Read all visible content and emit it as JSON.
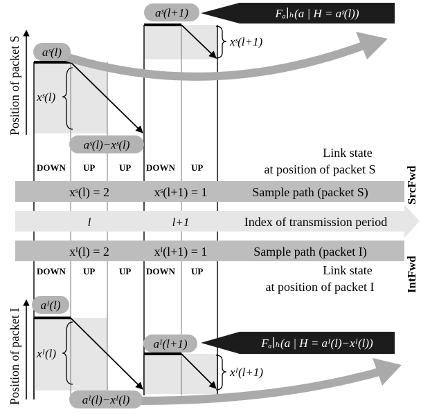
{
  "axes": {
    "top_axis_label": "Position of packet S",
    "bottom_axis_label": "Position of packet I"
  },
  "columns": {
    "source_states": [
      "DOWN",
      "UP",
      "UP",
      "DOWN",
      "UP"
    ],
    "intermediate_states": [
      "DOWN",
      "UP",
      "UP",
      "DOWN",
      "UP"
    ]
  },
  "rows": {
    "link_state_source_line1": "Link state",
    "link_state_source_line2": "at position of packet S",
    "sample_path_source_cell1": "xˢ(l) = 2",
    "sample_path_source_cell2": "xˢ(l+1) = 1",
    "sample_path_source_label": "Sample path (packet S)",
    "index_cell1": "l",
    "index_cell2": "l+1",
    "index_label": "Index of transmission period",
    "sample_path_intermediate_cell1": "xᴵ(l) = 2",
    "sample_path_intermediate_cell2": "xᴵ(l+1) = 1",
    "sample_path_intermediate_label": "Sample path (packet I)",
    "link_state_intermediate_line1": "Link state",
    "link_state_intermediate_line2": "at position of packet I"
  },
  "side_labels": {
    "source": "SrcFwd",
    "intermediate": "IntFwd"
  },
  "top_diagram": {
    "a_l": "aˢ(l)",
    "x_l": "xˢ(l)",
    "a_minus_x": "aˢ(l)−xˢ(l)",
    "a_l1": "aˢ(l+1)",
    "x_l1": "xˢ(l+1)",
    "cdf": "Fₐ∣ₕ(a | H = aˢ(l))"
  },
  "bottom_diagram": {
    "a_l": "aᴵ(l)",
    "x_l": "xᴵ(l)",
    "a_minus_x": "aᴵ(l)−xᴵ(l)",
    "a_l1": "aᴵ(l+1)",
    "x_l1": "xᴵ(l+1)",
    "cdf": "Fₐ∣ₕ(a | H = aᴵ(l)−xᴵ(l))"
  },
  "colors": {
    "band": "#bdbdbd",
    "box": "#e6e6e6",
    "callout": "#1c1c1c",
    "pill": "#b3b3b3",
    "arrow": "#aaaaaa"
  }
}
